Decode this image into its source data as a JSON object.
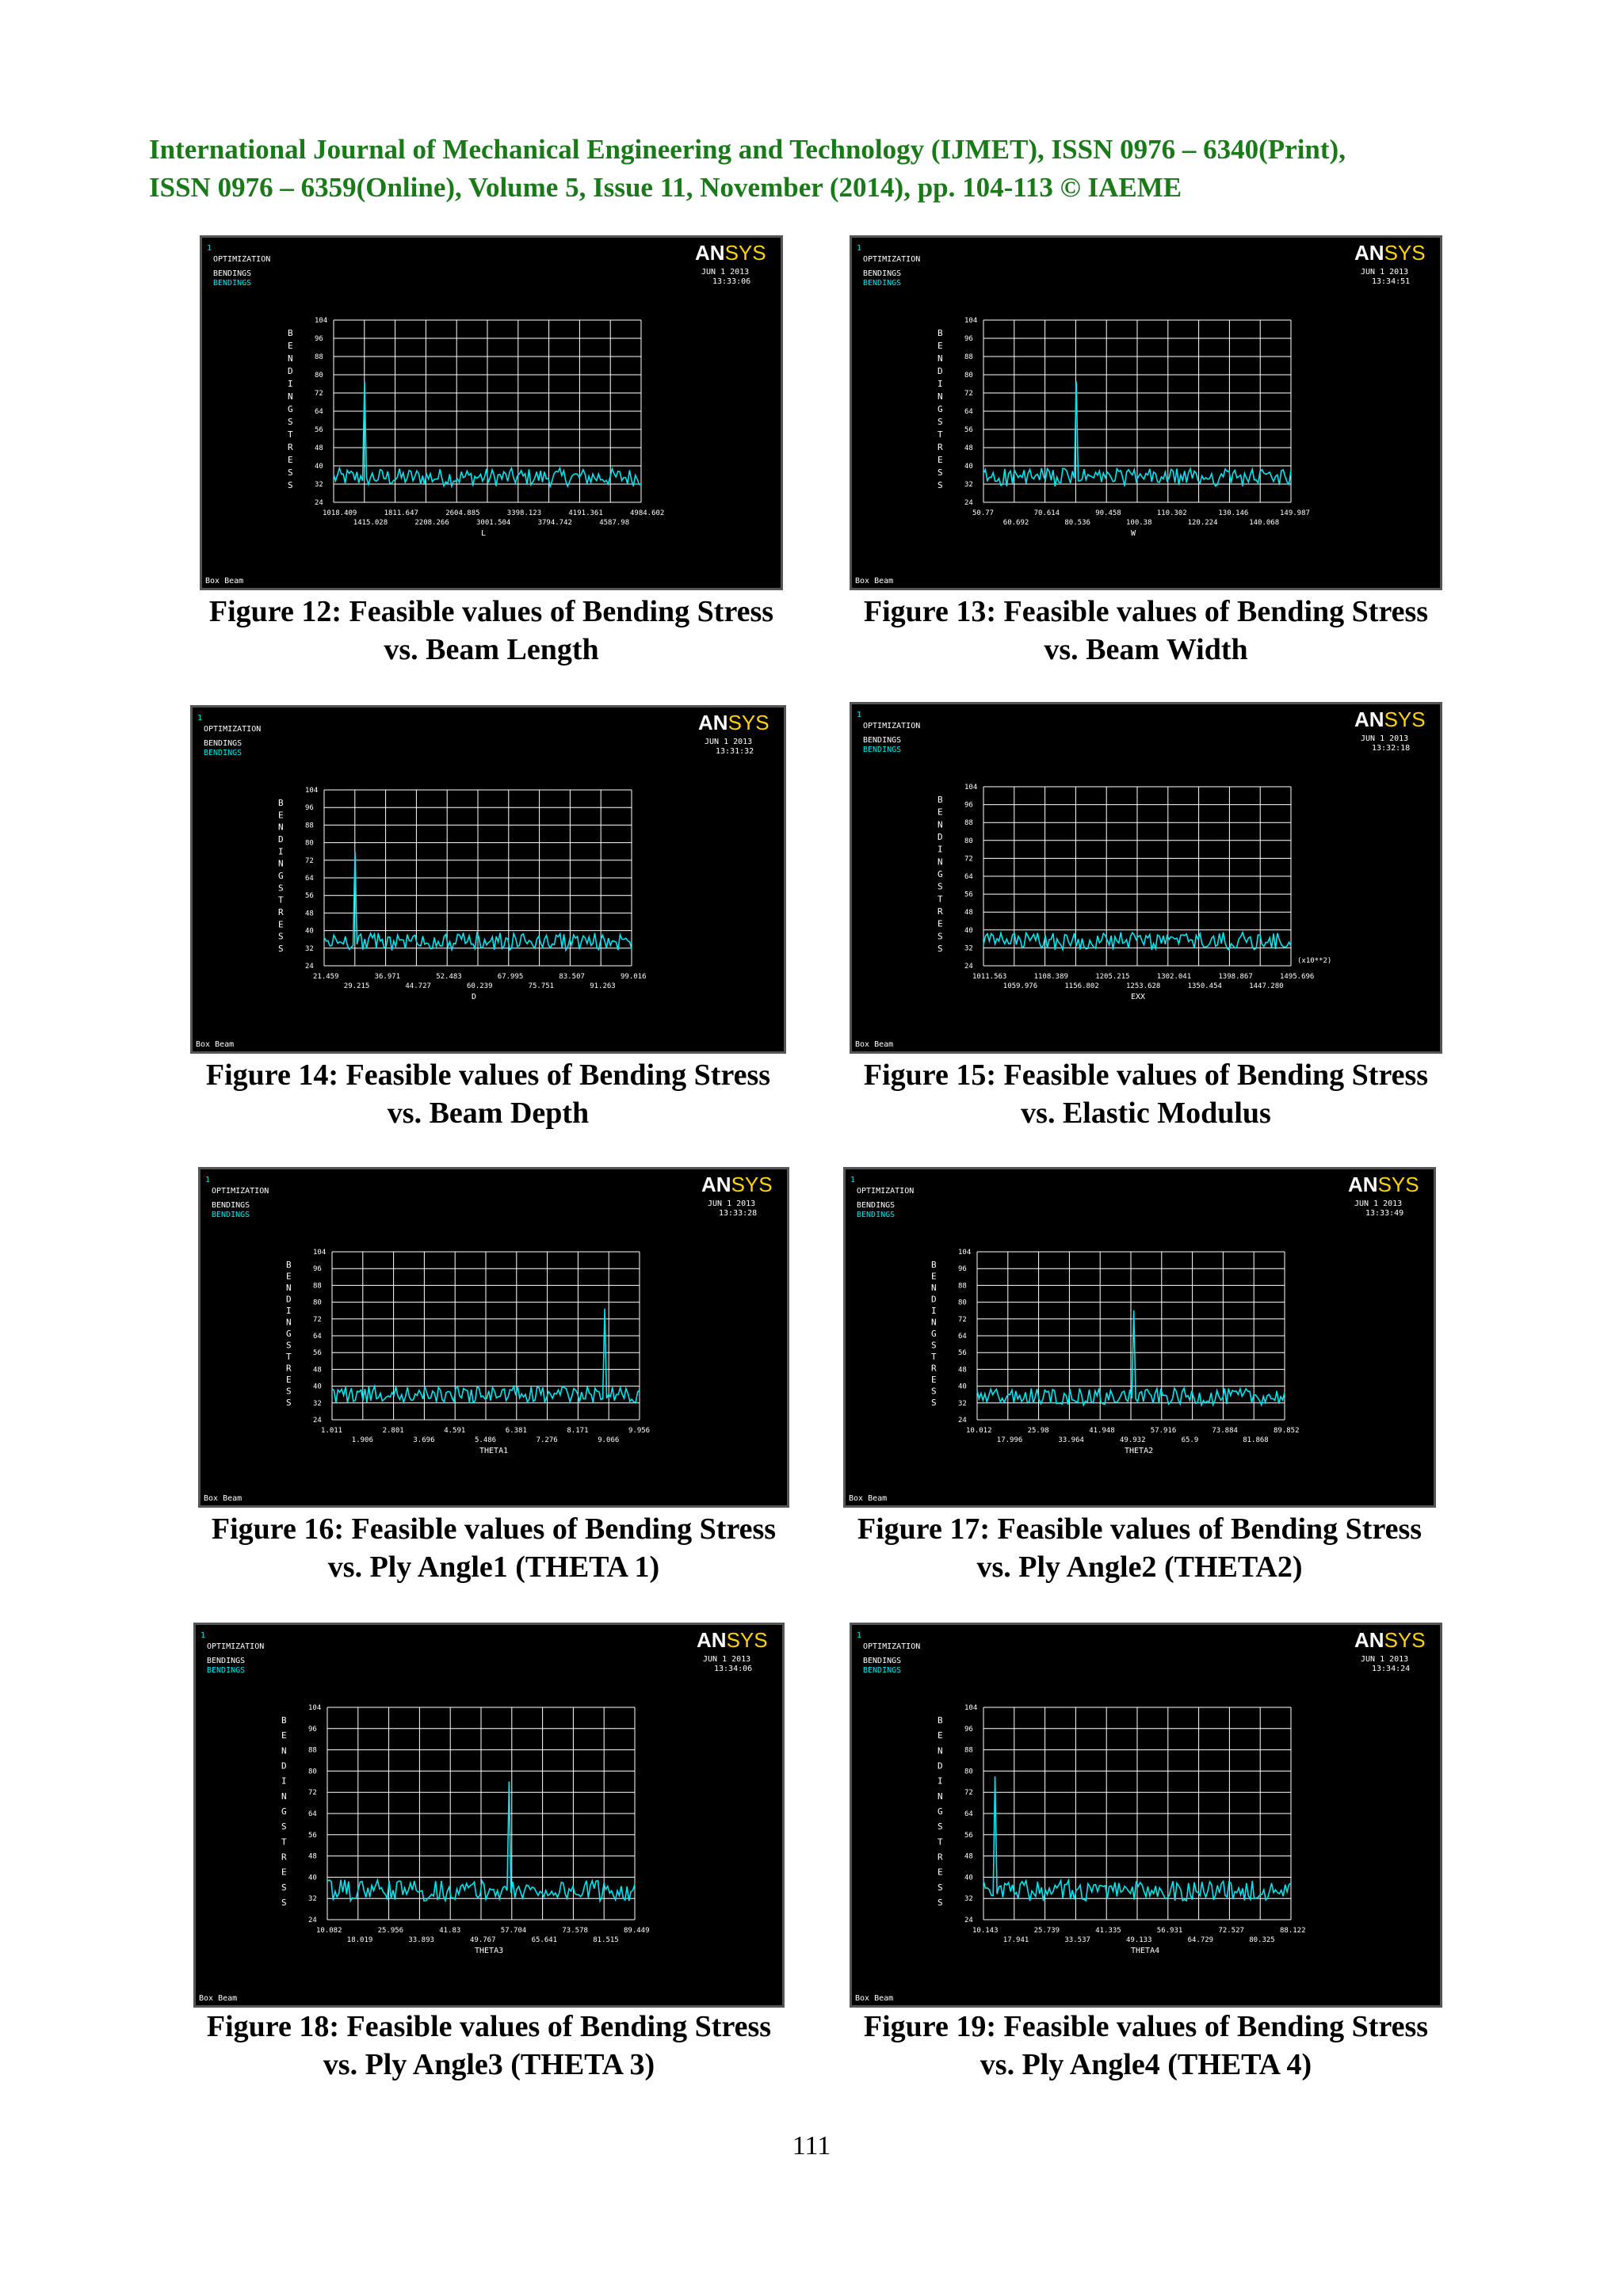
{
  "header": {
    "line1": "International Journal of Mechanical Engineering and Technology (IJMET), ISSN 0976 – 6340(Print),",
    "line2": "ISSN 0976 – 6359(Online), Volume 5, Issue 11, November (2014), pp. 104-113 © IAEME"
  },
  "page_number": "111",
  "colors": {
    "header": "#1a7a1a",
    "plot_bg": "#000000",
    "curve": "#00e5ee",
    "grid": "#ffffff",
    "logo_yellow": "#ffd400"
  },
  "figures": [
    {
      "caption_line1": "Figure 12: Feasible values of Bending Stress",
      "caption_line2": "vs. Beam Length",
      "panel": {
        "window_id": "1",
        "title": "OPTIMIZATION",
        "legend_white": "BENDINGS",
        "legend_cyan": "BENDINGS",
        "logo_a": "AN",
        "logo_b": "SYS",
        "date": "JUN  1 2013",
        "time": "13:33:06",
        "footer": "Box Beam",
        "ylabel": "BENDINGSTRESS",
        "xlabel": "L",
        "x_upper": [
          "1018.409",
          "1811.647",
          "2604.885",
          "3398.123",
          "4191.361",
          "4984.602"
        ],
        "x_lower": [
          "1415.028",
          "2208.266",
          "3001.504",
          "3794.742",
          "4587.98"
        ],
        "y_ticks": [
          "104",
          "96",
          "88",
          "80",
          "72",
          "64",
          "56",
          "48",
          "40",
          "32",
          "24"
        ],
        "multiplier": ""
      },
      "chart_data": {
        "type": "line",
        "x_range": [
          1018.409,
          4984.602
        ],
        "ylim": [
          24,
          104
        ],
        "baseline": 35,
        "spike": {
          "x": 1415.0,
          "y": 77
        }
      }
    },
    {
      "caption_line1": "Figure 13: Feasible values of Bending Stress",
      "caption_line2": "vs. Beam Width",
      "panel": {
        "window_id": "1",
        "title": "OPTIMIZATION",
        "legend_white": "BENDINGS",
        "legend_cyan": "BENDINGS",
        "logo_a": "AN",
        "logo_b": "SYS",
        "date": "JUN  1 2013",
        "time": "13:34:51",
        "footer": "Box Beam",
        "ylabel": "BENDINGSTRESS",
        "xlabel": "W",
        "x_upper": [
          "50.77",
          "70.614",
          "90.458",
          "110.302",
          "130.146",
          "149.987"
        ],
        "x_lower": [
          "60.692",
          "80.536",
          "100.38",
          "120.224",
          "140.068"
        ],
        "y_ticks": [
          "104",
          "96",
          "88",
          "80",
          "72",
          "64",
          "56",
          "48",
          "40",
          "32",
          "24"
        ],
        "multiplier": ""
      },
      "chart_data": {
        "type": "line",
        "x_range": [
          50.77,
          149.987
        ],
        "ylim": [
          24,
          104
        ],
        "baseline": 35,
        "spike": {
          "x": 80.5,
          "y": 77
        }
      }
    },
    {
      "caption_line1": "Figure 14: Feasible values of Bending Stress",
      "caption_line2": "vs. Beam Depth",
      "panel": {
        "window_id": "1",
        "title": "OPTIMIZATION",
        "legend_white": "BENDINGS",
        "legend_cyan": "BENDINGS",
        "logo_a": "AN",
        "logo_b": "SYS",
        "date": "JUN  1 2013",
        "time": "13:31:32",
        "footer": "Box Beam",
        "ylabel": "BENDINGSTRESS",
        "xlabel": "D",
        "x_upper": [
          "21.459",
          "36.971",
          "52.483",
          "67.995",
          "83.507",
          "99.016"
        ],
        "x_lower": [
          "29.215",
          "44.727",
          "60.239",
          "75.751",
          "91.263"
        ],
        "y_ticks": [
          "104",
          "96",
          "88",
          "80",
          "72",
          "64",
          "56",
          "48",
          "40",
          "32",
          "24"
        ],
        "multiplier": ""
      },
      "chart_data": {
        "type": "line",
        "x_range": [
          21.459,
          99.016
        ],
        "ylim": [
          24,
          104
        ],
        "baseline": 35,
        "spike": {
          "x": 29.3,
          "y": 76
        }
      }
    },
    {
      "caption_line1": "Figure 15: Feasible values of Bending Stress",
      "caption_line2": "vs. Elastic Modulus",
      "panel": {
        "window_id": "1",
        "title": "OPTIMIZATION",
        "legend_white": "BENDINGS",
        "legend_cyan": "BENDINGS",
        "logo_a": "AN",
        "logo_b": "SYS",
        "date": "JUN  1 2013",
        "time": "13:32:18",
        "footer": "Box Beam",
        "ylabel": "BENDINGSTRESS",
        "xlabel": "EXX",
        "x_upper": [
          "1011.563",
          "1108.389",
          "1205.215",
          "1302.041",
          "1398.867",
          "1495.696"
        ],
        "x_lower": [
          "1059.976",
          "1156.802",
          "1253.628",
          "1350.454",
          "1447.280"
        ],
        "y_ticks": [
          "104",
          "96",
          "88",
          "80",
          "72",
          "64",
          "56",
          "48",
          "40",
          "32",
          "24"
        ],
        "multiplier": "(x10**2)"
      },
      "chart_data": {
        "type": "line",
        "x_range": [
          1011.563,
          1495.696
        ],
        "ylim": [
          24,
          104
        ],
        "baseline": 35,
        "spike": null
      }
    },
    {
      "caption_line1": "Figure 16: Feasible values of Bending Stress",
      "caption_line2": "vs.  Ply Angle1 (THETA 1)",
      "panel": {
        "window_id": "1",
        "title": "OPTIMIZATION",
        "legend_white": "BENDINGS",
        "legend_cyan": "BENDINGS",
        "logo_a": "AN",
        "logo_b": "SYS",
        "date": "JUN  1 2013",
        "time": "13:33:28",
        "footer": "Box Beam",
        "ylabel": "BENDINGSTRESS",
        "xlabel": "THETA1",
        "x_upper": [
          "1.011",
          "2.801",
          "4.591",
          "6.381",
          "8.171",
          "9.956"
        ],
        "x_lower": [
          "1.906",
          "3.696",
          "5.486",
          "7.276",
          "9.066"
        ],
        "y_ticks": [
          "104",
          "96",
          "88",
          "80",
          "72",
          "64",
          "56",
          "48",
          "40",
          "32",
          "24"
        ],
        "multiplier": ""
      },
      "chart_data": {
        "type": "line",
        "x_range": [
          1.011,
          9.956
        ],
        "ylim": [
          24,
          104
        ],
        "baseline": 36,
        "spike": {
          "x": 8.95,
          "y": 77
        }
      }
    },
    {
      "caption_line1": "Figure 17: Feasible values of Bending Stress",
      "caption_line2": "vs. Ply Angle2 (THETA2)",
      "panel": {
        "window_id": "1",
        "title": "OPTIMIZATION",
        "legend_white": "BENDINGS",
        "legend_cyan": "BENDINGS",
        "logo_a": "AN",
        "logo_b": "SYS",
        "date": "JUN  1 2013",
        "time": "13:33:49",
        "footer": "Box Beam",
        "ylabel": "BENDINGSTRESS",
        "xlabel": "THETA2",
        "x_upper": [
          "10.012",
          "25.98",
          "41.948",
          "57.916",
          "73.884",
          "89.852"
        ],
        "x_lower": [
          "17.996",
          "33.964",
          "49.932",
          "65.9",
          "81.868"
        ],
        "y_ticks": [
          "104",
          "96",
          "88",
          "80",
          "72",
          "64",
          "56",
          "48",
          "40",
          "32",
          "24"
        ],
        "multiplier": ""
      },
      "chart_data": {
        "type": "line",
        "x_range": [
          10.012,
          89.852
        ],
        "ylim": [
          24,
          104
        ],
        "baseline": 35,
        "spike": {
          "x": 50.5,
          "y": 76
        }
      }
    },
    {
      "caption_line1": "Figure 18: Feasible values of Bending Stress",
      "caption_line2": "vs. Ply Angle3 (THETA 3)",
      "panel": {
        "window_id": "1",
        "title": "OPTIMIZATION",
        "legend_white": "BENDINGS",
        "legend_cyan": "BENDINGS",
        "logo_a": "AN",
        "logo_b": "SYS",
        "date": "JUN  1 2013",
        "time": "13:34:06",
        "footer": "Box Beam",
        "ylabel": "BENDINGSTRESS",
        "xlabel": "THETA3",
        "x_upper": [
          "10.082",
          "25.956",
          "41.83",
          "57.704",
          "73.578",
          "89.449"
        ],
        "x_lower": [
          "18.019",
          "33.893",
          "49.767",
          "65.641",
          "81.515"
        ],
        "y_ticks": [
          "104",
          "96",
          "88",
          "80",
          "72",
          "64",
          "56",
          "48",
          "40",
          "32",
          "24"
        ],
        "multiplier": ""
      },
      "chart_data": {
        "type": "line",
        "x_range": [
          10.082,
          89.449
        ],
        "ylim": [
          24,
          104
        ],
        "baseline": 35,
        "spike": {
          "x": 57.0,
          "y": 76
        }
      }
    },
    {
      "caption_line1": "Figure 19: Feasible values of Bending Stress",
      "caption_line2": "vs. Ply Angle4 (THETA 4)",
      "panel": {
        "window_id": "1",
        "title": "OPTIMIZATION",
        "legend_white": "BENDINGS",
        "legend_cyan": "BENDINGS",
        "logo_a": "AN",
        "logo_b": "SYS",
        "date": "JUN  1 2013",
        "time": "13:34:24",
        "footer": "Box Beam",
        "ylabel": "BENDINGSTRESS",
        "xlabel": "THETA4",
        "x_upper": [
          "10.143",
          "25.739",
          "41.335",
          "56.931",
          "72.527",
          "88.122"
        ],
        "x_lower": [
          "17.941",
          "33.537",
          "49.133",
          "64.729",
          "80.325"
        ],
        "y_ticks": [
          "104",
          "96",
          "88",
          "80",
          "72",
          "64",
          "56",
          "48",
          "40",
          "32",
          "24"
        ],
        "multiplier": ""
      },
      "chart_data": {
        "type": "line",
        "x_range": [
          10.143,
          88.122
        ],
        "ylim": [
          24,
          104
        ],
        "baseline": 35,
        "spike": {
          "x": 13.0,
          "y": 78
        }
      }
    }
  ]
}
